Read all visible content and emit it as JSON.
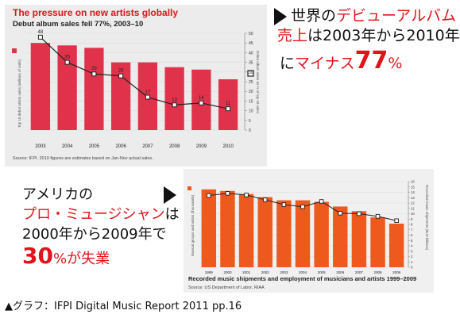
{
  "chart1": {
    "title": "The pressure on new artists globally",
    "subtitle": "Debut album sales fell 77%, 2003–10",
    "y_left_label": "Top 10 debut artists sales (millions of units)",
    "y_right_label": "Debut album sales as % of top 10 sales",
    "source": "Source: IFPI. 2010 figures are estimates based on Jan-Nov actual sales.",
    "right_ticks": [
      "50",
      "45",
      "40",
      "35",
      "30",
      "25",
      "20",
      "15",
      "10",
      "5",
      "0"
    ],
    "colors": {
      "bar": "#e0334b",
      "line": "#222222",
      "title": "#e0141b"
    }
  },
  "chart2": {
    "title": "Recorded music shipments and employment of musicians and artists 1999–2009",
    "source": "Source: US Department of Labor, RIAA",
    "y_left_label": "Musical groups and artists (thousands)",
    "y_right_label": "Recorded music shipments ($US billions)",
    "right_ticks": [
      "16",
      "15",
      "14",
      "13",
      "12",
      "11",
      "10",
      "9",
      "8",
      "7",
      "6",
      "5",
      "4",
      "3",
      "2",
      "1",
      "0"
    ],
    "colors": {
      "bar": "#ee5a1e",
      "line": "#222222"
    }
  },
  "annotation1": {
    "line1_a": "世界の",
    "line1_b": "デビューアルバム",
    "line2_a": "売上",
    "line2_b": "は2003年から2010年",
    "line3_a": "に",
    "line3_b": "マイナス",
    "line3_c": "77",
    "line3_d": "%"
  },
  "annotation2": {
    "line1": "アメリカの",
    "line2_a": "プロ・ミュージシャン",
    "line2_b": "は",
    "line3": "2000年から2009年で",
    "line4_a": "30",
    "line4_b": "%が失業"
  },
  "caption": "▲グラフ：IFPI Digital Music Report 2011 pp.16",
  "chart_data": [
    {
      "type": "bar",
      "categories": [
        "2003",
        "2004",
        "2005",
        "2006",
        "2007",
        "2008",
        "2009",
        "2010"
      ],
      "series": [
        {
          "values": [
            180,
            175,
            170,
            140,
            140,
            130,
            125,
            105
          ]
        },
        {
          "values": [
            48,
            35,
            29,
            28,
            17,
            13,
            14,
            11
          ]
        }
      ],
      "data_labels": [
        "48",
        "35",
        "29",
        "28",
        "17",
        "13",
        "14",
        "11"
      ],
      "ylim_right": [
        0,
        50
      ]
    },
    {
      "type": "bar",
      "categories": [
        "1999",
        "2000",
        "2001",
        "2002",
        "2003",
        "2004",
        "2005",
        "2006",
        "2007",
        "2008",
        "2009"
      ],
      "series": [
        {
          "values": [
            50,
            49,
            47,
            45,
            43,
            43,
            42,
            39,
            36,
            32,
            28
          ]
        },
        {
          "values": [
            13.4,
            13.8,
            13.5,
            12.6,
            11.7,
            11.3,
            12.3,
            10.1,
            10.0,
            9.5,
            8.7
          ]
        }
      ],
      "ylim_right": [
        0,
        16
      ]
    }
  ]
}
